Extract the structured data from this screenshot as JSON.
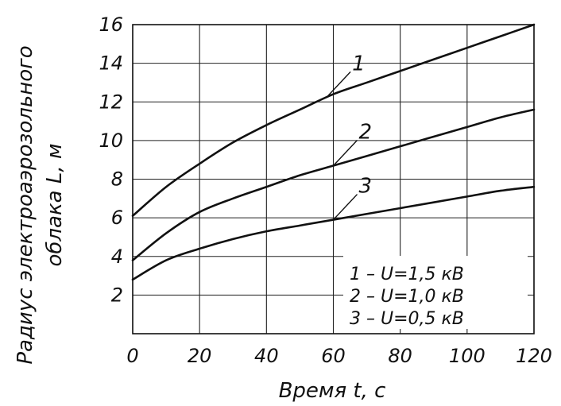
{
  "chart_data": {
    "type": "line",
    "title": "",
    "xlabel": "Время t, с",
    "ylabel_line1": "Радиус электроаэрозольного",
    "ylabel_line2": "облака L, м",
    "xlim": [
      0,
      120
    ],
    "ylim": [
      0,
      16
    ],
    "x_ticks": [
      "0",
      "20",
      "40",
      "60",
      "80",
      "100",
      "120"
    ],
    "y_ticks": [
      "2",
      "4",
      "6",
      "8",
      "10",
      "12",
      "14",
      "16"
    ],
    "grid": true,
    "x": [
      0,
      10,
      20,
      30,
      40,
      50,
      60,
      70,
      80,
      90,
      100,
      110,
      120
    ],
    "series": [
      {
        "label": "1",
        "values": [
          6.1,
          7.6,
          8.8,
          9.9,
          10.8,
          11.6,
          12.4,
          13.0,
          13.6,
          14.2,
          14.8,
          15.4,
          16.0
        ]
      },
      {
        "label": "2",
        "values": [
          3.8,
          5.2,
          6.3,
          7.0,
          7.6,
          8.2,
          8.7,
          9.2,
          9.7,
          10.2,
          10.7,
          11.2,
          11.6
        ]
      },
      {
        "label": "3",
        "values": [
          2.8,
          3.8,
          4.4,
          4.9,
          5.3,
          5.6,
          5.9,
          6.2,
          6.5,
          6.8,
          7.1,
          7.4,
          7.6
        ]
      }
    ],
    "curve_label_anchor_x": [
      58,
      60,
      60
    ],
    "legend": {
      "placement": "bottom-right",
      "entries": [
        "1 – U=1,5 кВ",
        "2 – U=1,0 кВ",
        "3 – U=0,5 кВ"
      ]
    }
  }
}
